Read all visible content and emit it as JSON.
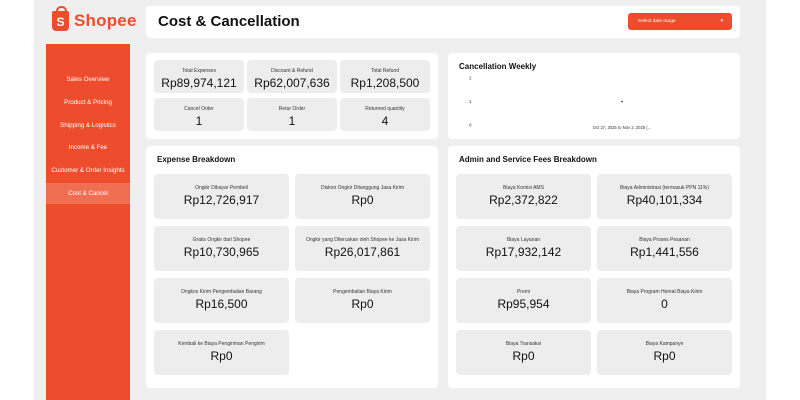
{
  "brand": {
    "name": "Shopee",
    "logo_letter": "S",
    "accent": "#ee4d2d"
  },
  "header": {
    "title": "Cost & Cancellation",
    "date_select_label": "Select date range",
    "date_select_caret": "▾"
  },
  "sidebar": {
    "items": [
      {
        "label": "Sales Overview",
        "active": false
      },
      {
        "label": "Product & Pricing",
        "active": false
      },
      {
        "label": "Shipping & Logistics",
        "active": false
      },
      {
        "label": "Income & Fee",
        "active": false
      },
      {
        "label": "Customer & Order Insights",
        "active": false
      },
      {
        "label": "Cost & Cancel",
        "active": true
      }
    ]
  },
  "summary": [
    {
      "label": "Total Expenses",
      "value": "Rp89,974,121"
    },
    {
      "label": "Discount & Refund",
      "value": "Rp62,007,636"
    },
    {
      "label": "Total Refund",
      "value": "Rp1,208,500"
    },
    {
      "label": "Cancel Order",
      "value": "1"
    },
    {
      "label": "Retur Order",
      "value": "1"
    },
    {
      "label": "Returned quantity",
      "value": "4"
    }
  ],
  "cancellation_weekly": {
    "title": "Cancellation Weekly",
    "chart_data": {
      "type": "scatter",
      "title": "Cancellation Weekly",
      "x": [
        "Oct 27, 2025 to Nov 2, 2025 (..."
      ],
      "y": [
        1
      ],
      "y_ticks": [
        "0",
        "1",
        "2"
      ],
      "ylim": [
        0,
        2
      ]
    }
  },
  "expense_breakdown": {
    "title": "Expense Breakdown",
    "items": [
      {
        "label": "Ongkir Dibayar Pembeli",
        "value": "Rp12,726,917"
      },
      {
        "label": "Diskon Ongkir Ditanggung Jasa Kirim",
        "value": "Rp0"
      },
      {
        "label": "Gratis Ongkir dari Shopee",
        "value": "Rp10,730,965"
      },
      {
        "label": "Ongkir yang Diteruskan oleh Shopee ke Jasa Kirim",
        "value": "Rp26,017,861"
      },
      {
        "label": "Ongkos Kirim Pengembalian Barang",
        "value": "Rp16,500"
      },
      {
        "label": "Pengembalian Biaya Kirim",
        "value": "Rp0"
      },
      {
        "label": "Kembali ke Biaya Pengiriman Pengirim",
        "value": "Rp0"
      }
    ]
  },
  "admin_fees": {
    "title": "Admin and Service Fees Breakdown",
    "items": [
      {
        "label": "Biaya Komisi AMS",
        "value": "Rp2,372,822"
      },
      {
        "label": "Biaya Administrasi (termasuk PPN 11%)",
        "value": "Rp40,101,334"
      },
      {
        "label": "Biaya Layanan",
        "value": "Rp17,932,142"
      },
      {
        "label": "Biaya Proses Pesanan",
        "value": "Rp1,441,556"
      },
      {
        "label": "Premi",
        "value": "Rp95,954"
      },
      {
        "label": "Biaya Program Hemat Biaya Kirim",
        "value": "0"
      },
      {
        "label": "Biaya Transaksi",
        "value": "Rp0"
      },
      {
        "label": "Biaya Kampanye",
        "value": "Rp0"
      }
    ]
  }
}
